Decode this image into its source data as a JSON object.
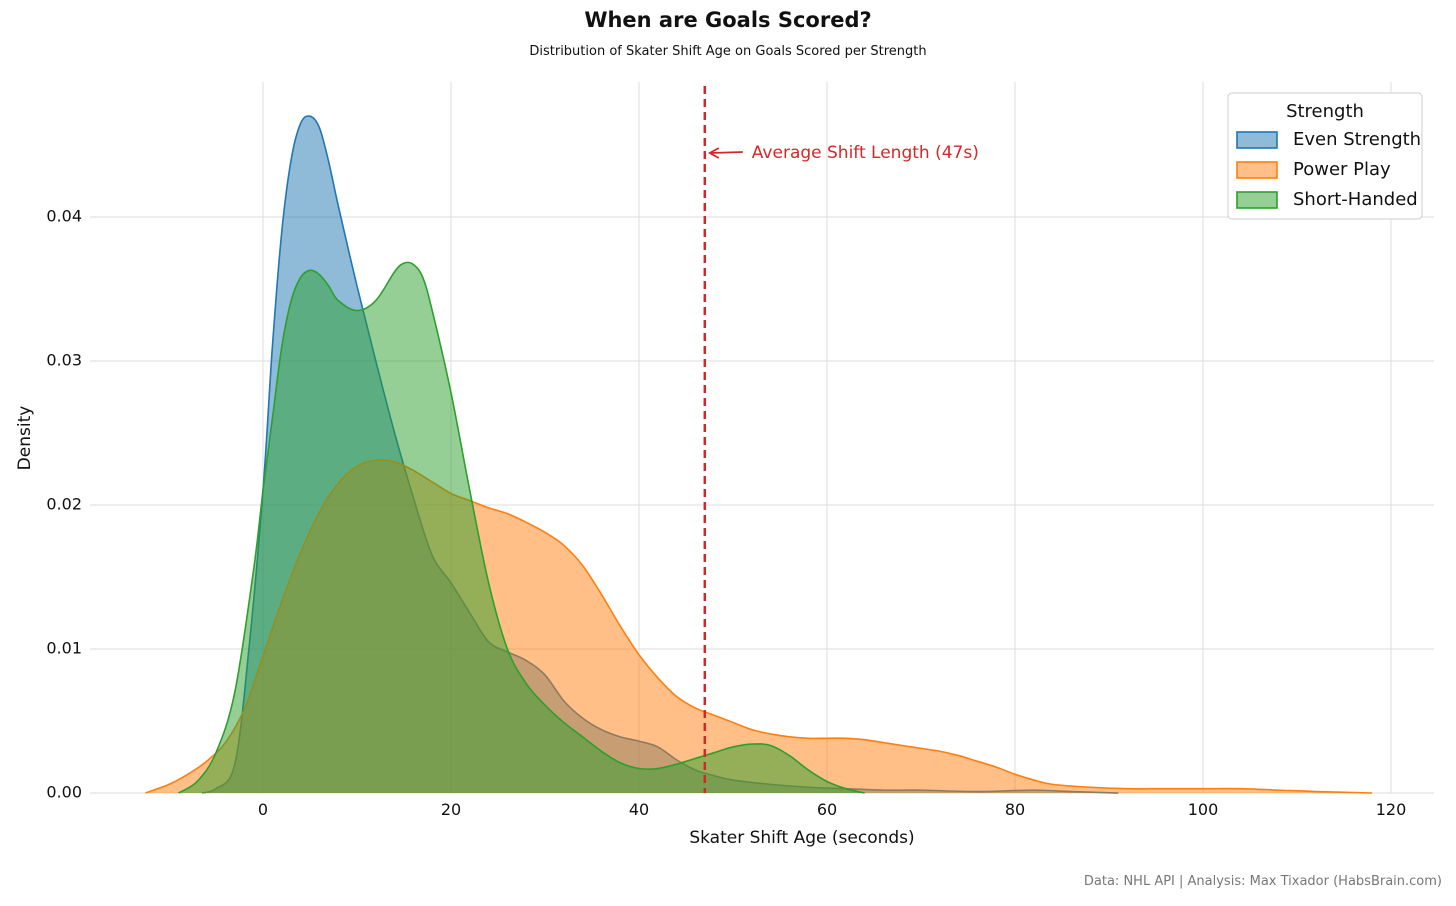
{
  "title": "When are Goals Scored?",
  "subtitle": "Distribution of Skater Shift Age on Goals Scored per Strength",
  "caption": "Data: NHL API | Analysis: Max Tixador (HabsBrain.com)",
  "chart_data": {
    "type": "area",
    "xlabel": "Skater Shift Age (seconds)",
    "ylabel": "Density",
    "xlim": [
      -12,
      120
    ],
    "ylim": [
      0,
      0.05
    ],
    "xticks": [
      0,
      20,
      40,
      60,
      80,
      100,
      120
    ],
    "yticks": [
      0.0,
      0.01,
      0.02,
      0.03,
      0.04
    ],
    "xtick_labels": [
      "0",
      "20",
      "40",
      "60",
      "80",
      "100",
      "120"
    ],
    "ytick_labels": [
      "0.00",
      "0.01",
      "0.02",
      "0.03",
      "0.04"
    ],
    "grid": true,
    "legend": {
      "title": "Strength",
      "placement": "top-right"
    },
    "annotation": {
      "text": "Average Shift Length (47s)",
      "x": 47,
      "color": "#d62728"
    },
    "series": [
      {
        "name": "Even Strength",
        "color": "#1f77b4",
        "points": [
          [
            -6.5,
            0
          ],
          [
            -5,
            0.0003
          ],
          [
            -3,
            0.002
          ],
          [
            -1.5,
            0.01
          ],
          [
            0,
            0.021
          ],
          [
            1,
            0.031
          ],
          [
            2,
            0.039
          ],
          [
            3,
            0.044
          ],
          [
            4,
            0.0465
          ],
          [
            5,
            0.047
          ],
          [
            6,
            0.0462
          ],
          [
            7,
            0.0438
          ],
          [
            8,
            0.0408
          ],
          [
            10,
            0.0352
          ],
          [
            12,
            0.03
          ],
          [
            14,
            0.025
          ],
          [
            16,
            0.0205
          ],
          [
            18,
            0.0165
          ],
          [
            20,
            0.0146
          ],
          [
            22,
            0.0125
          ],
          [
            24,
            0.0105
          ],
          [
            26,
            0.0098
          ],
          [
            28,
            0.0092
          ],
          [
            30,
            0.0082
          ],
          [
            32,
            0.0064
          ],
          [
            34,
            0.0052
          ],
          [
            36,
            0.0044
          ],
          [
            38,
            0.0039
          ],
          [
            40,
            0.0036
          ],
          [
            42,
            0.0032
          ],
          [
            44,
            0.0023
          ],
          [
            46,
            0.0016
          ],
          [
            48,
            0.0012
          ],
          [
            50,
            0.0009
          ],
          [
            54,
            0.0006
          ],
          [
            58,
            0.0004
          ],
          [
            62,
            0.0003
          ],
          [
            66,
            0.0002
          ],
          [
            70,
            0.0002
          ],
          [
            76,
            0.0001
          ],
          [
            82,
            0.0002
          ],
          [
            86,
            0.0001
          ],
          [
            91,
            0
          ]
        ]
      },
      {
        "name": "Power Play",
        "color": "#ff7f0e",
        "points": [
          [
            -12.5,
            0
          ],
          [
            -10,
            0.0006
          ],
          [
            -8,
            0.0013
          ],
          [
            -6,
            0.0022
          ],
          [
            -4,
            0.0035
          ],
          [
            -2,
            0.0058
          ],
          [
            0,
            0.0095
          ],
          [
            2,
            0.0133
          ],
          [
            4,
            0.0167
          ],
          [
            6,
            0.0195
          ],
          [
            8,
            0.0215
          ],
          [
            10,
            0.0227
          ],
          [
            12,
            0.0231
          ],
          [
            14,
            0.023
          ],
          [
            16,
            0.0224
          ],
          [
            18,
            0.0216
          ],
          [
            20,
            0.0208
          ],
          [
            22,
            0.0203
          ],
          [
            24,
            0.0198
          ],
          [
            26,
            0.0194
          ],
          [
            28,
            0.0188
          ],
          [
            30,
            0.0181
          ],
          [
            32,
            0.0172
          ],
          [
            34,
            0.0158
          ],
          [
            36,
            0.0138
          ],
          [
            38,
            0.0116
          ],
          [
            40,
            0.0096
          ],
          [
            42,
            0.008
          ],
          [
            44,
            0.0067
          ],
          [
            46,
            0.0059
          ],
          [
            48,
            0.0054
          ],
          [
            50,
            0.0049
          ],
          [
            52,
            0.0044
          ],
          [
            54,
            0.0041
          ],
          [
            56,
            0.0039
          ],
          [
            58,
            0.0038
          ],
          [
            60,
            0.0038
          ],
          [
            62,
            0.0038
          ],
          [
            64,
            0.0037
          ],
          [
            66,
            0.0035
          ],
          [
            68,
            0.0033
          ],
          [
            70,
            0.0031
          ],
          [
            72,
            0.0029
          ],
          [
            74,
            0.0026
          ],
          [
            76,
            0.0022
          ],
          [
            78,
            0.0018
          ],
          [
            80,
            0.0013
          ],
          [
            82,
            0.0009
          ],
          [
            84,
            0.0006
          ],
          [
            88,
            0.0004
          ],
          [
            92,
            0.0003
          ],
          [
            96,
            0.0003
          ],
          [
            100,
            0.0003
          ],
          [
            104,
            0.0003
          ],
          [
            108,
            0.0002
          ],
          [
            112,
            0.0001
          ],
          [
            118,
            0
          ]
        ]
      },
      {
        "name": "Short-Handed",
        "color": "#2ca02c",
        "points": [
          [
            -9,
            0
          ],
          [
            -7,
            0.0008
          ],
          [
            -5,
            0.0028
          ],
          [
            -3,
            0.007
          ],
          [
            -1,
            0.0155
          ],
          [
            0,
            0.021
          ],
          [
            1,
            0.026
          ],
          [
            2,
            0.031
          ],
          [
            3,
            0.0342
          ],
          [
            4,
            0.0358
          ],
          [
            5,
            0.0363
          ],
          [
            6,
            0.036
          ],
          [
            7,
            0.0352
          ],
          [
            8,
            0.0342
          ],
          [
            10,
            0.0335
          ],
          [
            12,
            0.0342
          ],
          [
            14,
            0.0362
          ],
          [
            15,
            0.0368
          ],
          [
            16,
            0.0367
          ],
          [
            17,
            0.0358
          ],
          [
            18,
            0.0335
          ],
          [
            20,
            0.0278
          ],
          [
            22,
            0.021
          ],
          [
            24,
            0.0146
          ],
          [
            26,
            0.01
          ],
          [
            28,
            0.0076
          ],
          [
            30,
            0.0061
          ],
          [
            32,
            0.0049
          ],
          [
            34,
            0.0039
          ],
          [
            36,
            0.0029
          ],
          [
            38,
            0.0021
          ],
          [
            40,
            0.0017
          ],
          [
            42,
            0.0017
          ],
          [
            44,
            0.002
          ],
          [
            46,
            0.0024
          ],
          [
            48,
            0.0028
          ],
          [
            50,
            0.0032
          ],
          [
            52,
            0.0034
          ],
          [
            54,
            0.0033
          ],
          [
            56,
            0.0026
          ],
          [
            58,
            0.0016
          ],
          [
            60,
            0.0008
          ],
          [
            62,
            0.0003
          ],
          [
            64,
            0
          ]
        ]
      }
    ]
  }
}
